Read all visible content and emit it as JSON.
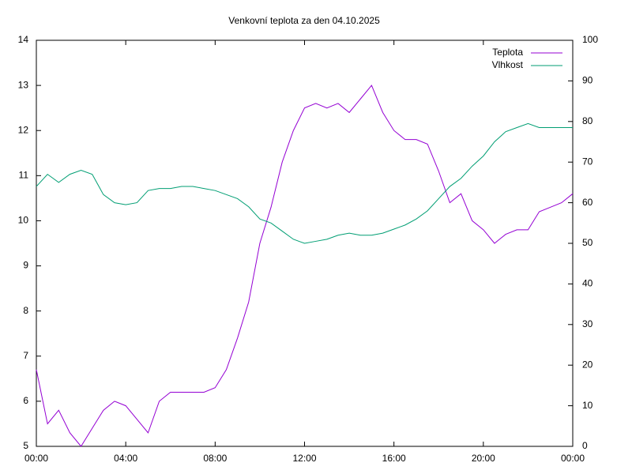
{
  "chart_data": {
    "type": "line",
    "title": "Venkovní teplota za den 04.10.2025",
    "x": [
      0,
      0.5,
      1,
      1.5,
      2,
      2.5,
      3,
      3.5,
      4,
      4.5,
      5,
      5.5,
      6,
      6.5,
      7,
      7.5,
      8,
      8.5,
      9,
      9.5,
      10,
      10.5,
      11,
      11.5,
      12,
      12.5,
      13,
      13.5,
      14,
      14.5,
      15,
      15.5,
      16,
      16.5,
      17,
      17.5,
      18,
      18.5,
      19,
      19.5,
      20,
      20.5,
      21,
      21.5,
      22,
      22.5,
      23,
      23.5,
      24
    ],
    "series": [
      {
        "name": "Teplota",
        "color": "#9400d3",
        "values": [
          6.7,
          5.5,
          5.8,
          5.3,
          5.0,
          5.4,
          5.8,
          6.0,
          5.9,
          5.6,
          5.3,
          6.0,
          6.2,
          6.2,
          6.2,
          6.2,
          6.3,
          6.7,
          7.4,
          8.2,
          9.5,
          10.3,
          11.3,
          12.0,
          12.5,
          12.6,
          12.5,
          12.6,
          12.4,
          12.7,
          13.0,
          12.4,
          12.0,
          11.8,
          11.8,
          11.7,
          11.1,
          10.4,
          10.6,
          10.0,
          9.8,
          9.5,
          9.7,
          9.8,
          9.8,
          10.2,
          10.3,
          10.4,
          10.6
        ]
      },
      {
        "name": "Vlhkost",
        "color": "#009e73",
        "axis": "y2",
        "values": [
          64,
          67,
          65,
          67,
          68,
          67,
          62,
          60,
          59.5,
          60,
          63,
          63.5,
          63.5,
          64,
          64,
          63.5,
          63,
          62,
          61,
          59,
          56,
          55,
          53,
          51,
          50,
          50.5,
          51,
          52,
          52.5,
          52,
          52,
          52.5,
          53.5,
          54.5,
          56,
          58,
          61,
          64,
          66,
          69,
          71.5,
          75,
          77.5,
          78.5,
          79.5,
          78.5,
          78.5,
          78.5,
          78.5
        ]
      }
    ],
    "xlim": [
      0,
      24
    ],
    "xticks": [
      {
        "value": 0,
        "label": "00:00"
      },
      {
        "value": 4,
        "label": "04:00"
      },
      {
        "value": 8,
        "label": "08:00"
      },
      {
        "value": 12,
        "label": "12:00"
      },
      {
        "value": 16,
        "label": "16:00"
      },
      {
        "value": 20,
        "label": "20:00"
      },
      {
        "value": 24,
        "label": "00:00"
      }
    ],
    "ylim": [
      5,
      14
    ],
    "yticks": [
      5,
      6,
      7,
      8,
      9,
      10,
      11,
      12,
      13,
      14
    ],
    "y2lim": [
      0,
      100
    ],
    "y2ticks": [
      0,
      10,
      20,
      30,
      40,
      50,
      60,
      70,
      80,
      90,
      100
    ],
    "legend": "top-right"
  }
}
